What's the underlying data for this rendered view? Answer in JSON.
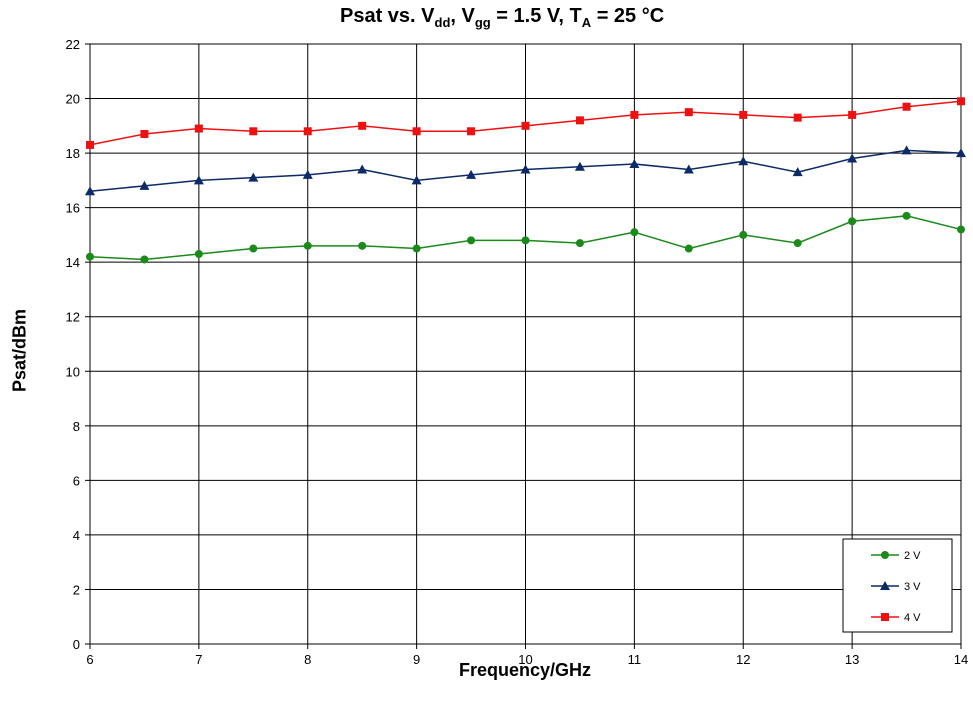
{
  "title": {
    "prefix": "Psat vs. V",
    "vdd_sub": "dd",
    "mid": ", V",
    "vgg_sub": "gg",
    "mid2": " = 1.5 V, T",
    "ta_sub": "A",
    "suffix": " = 25 °C"
  },
  "colors": {
    "2 V": "#1a8a1a",
    "3 V": "#0b2a66",
    "4 V": "#ee1111",
    "grid": "#000000"
  },
  "chart_data": {
    "type": "line",
    "title": "Psat vs. Vdd, Vgg = 1.5 V, TA = 25 °C",
    "xlabel": "Frequency/GHz",
    "ylabel": "Psat/dBm",
    "xlim": [
      6,
      14
    ],
    "ylim": [
      0,
      22
    ],
    "xticks": [
      6,
      7,
      8,
      9,
      10,
      11,
      12,
      13,
      14
    ],
    "yticks": [
      0,
      2,
      4,
      6,
      8,
      10,
      12,
      14,
      16,
      18,
      20,
      22
    ],
    "grid": true,
    "legend_position": "bottom-right",
    "x": [
      6,
      6.5,
      7,
      7.5,
      8,
      8.5,
      9,
      9.5,
      10,
      10.5,
      11,
      11.5,
      12,
      12.5,
      13,
      13.5,
      14
    ],
    "series": [
      {
        "name": "2 V",
        "marker": "circle",
        "values": [
          14.2,
          14.1,
          14.3,
          14.5,
          14.6,
          14.6,
          14.5,
          14.8,
          14.8,
          14.7,
          15.1,
          14.5,
          15.0,
          14.7,
          15.5,
          15.7,
          15.2
        ]
      },
      {
        "name": "3 V",
        "marker": "triangle",
        "values": [
          16.6,
          16.8,
          17.0,
          17.1,
          17.2,
          17.4,
          17.0,
          17.2,
          17.4,
          17.5,
          17.6,
          17.4,
          17.7,
          17.3,
          17.8,
          18.1,
          18.0
        ]
      },
      {
        "name": "4 V",
        "marker": "square",
        "values": [
          18.3,
          18.7,
          18.9,
          18.8,
          18.8,
          19.0,
          18.8,
          18.8,
          19.0,
          19.2,
          19.4,
          19.5,
          19.4,
          19.3,
          19.4,
          19.7,
          19.9
        ]
      }
    ]
  }
}
